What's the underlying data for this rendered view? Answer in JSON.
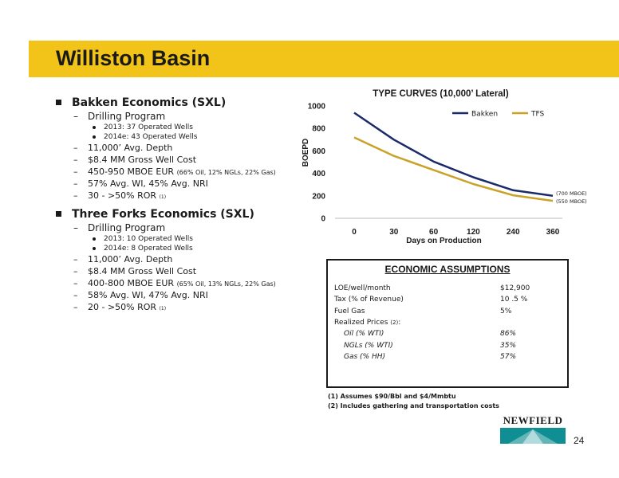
{
  "page": {
    "title": "Williston Basin",
    "number": "24"
  },
  "bakken": {
    "heading": "Bakken Economics (SXL)",
    "program": "Drilling Program",
    "wells": [
      "2013: 37 Operated Wells",
      "2014e: 43 Operated Wells"
    ],
    "depth": "11,000’ Avg. Depth",
    "cost": "$8.4 MM Gross Well Cost",
    "eur_main": "450-950 MBOE EUR",
    "eur_detail": "(66% Oil, 12% NGLs, 22% Gas)",
    "wi": "57% Avg. WI, 45% Avg. NRI",
    "ror_main": "30 - >50% ROR",
    "ror_note": "(1)"
  },
  "threeforks": {
    "heading": "Three Forks Economics (SXL)",
    "program": "Drilling Program",
    "wells": [
      "2013:   10 Operated Wells",
      "2014e: 8 Operated Wells"
    ],
    "depth": "11,000’ Avg. Depth",
    "cost": "$8.4 MM Gross Well Cost",
    "eur_main": "400-800 MBOE EUR",
    "eur_detail": "(65% Oil, 13% NGLs, 22% Gas)",
    "wi": "58% Avg. WI, 47% Avg. NRI",
    "ror_main": "20 - >50% ROR",
    "ror_note": "(1)"
  },
  "chart_data": {
    "type": "line",
    "title": "TYPE CURVES (10,000’ Lateral)",
    "xlabel": "Days on Production",
    "ylabel": "BOEPD",
    "categories": [
      "0",
      "30",
      "60",
      "120",
      "240",
      "360"
    ],
    "ylim": [
      0,
      1000
    ],
    "yticks": [
      "0",
      "200",
      "400",
      "600",
      "800",
      "1000"
    ],
    "series": [
      {
        "name": "Bakken",
        "values": [
          940,
          700,
          505,
          365,
          250,
          200
        ],
        "color": "#1b2a6b",
        "end_label": "(700 MBOE)"
      },
      {
        "name": "TFS",
        "values": [
          720,
          555,
          430,
          305,
          205,
          155
        ],
        "color": "#c9a227",
        "end_label": "(550 MBOE)"
      }
    ],
    "legend": "top-right",
    "grid": false
  },
  "assumptions": {
    "title": "ECONOMIC ASSUMPTIONS",
    "rows": [
      {
        "label": "LOE/well/month",
        "value": "$12,900"
      },
      {
        "label": "Tax (% of Revenue)",
        "value": "10 .5 %"
      },
      {
        "label": "Fuel Gas",
        "value": "5%"
      },
      {
        "label": "Realized Prices",
        "note": "(2)",
        "suffix": ":"
      },
      {
        "label": "Oil (% WTI)",
        "value": "86%"
      },
      {
        "label": "NGLs (% WTI)",
        "value": "35%"
      },
      {
        "label": "Gas (% HH)",
        "value": "57%"
      }
    ]
  },
  "footnotes": [
    "(1) Assumes $90/Bbl and $4/Mmbtu",
    "(2) Includes gathering and transportation costs"
  ],
  "logo": {
    "text": "NEWFIELD"
  },
  "colors": {
    "title_bar": "#f2c318",
    "bakken": "#1b2a6b",
    "tfs": "#c9a227",
    "logo_teal": "#0f8f93"
  }
}
